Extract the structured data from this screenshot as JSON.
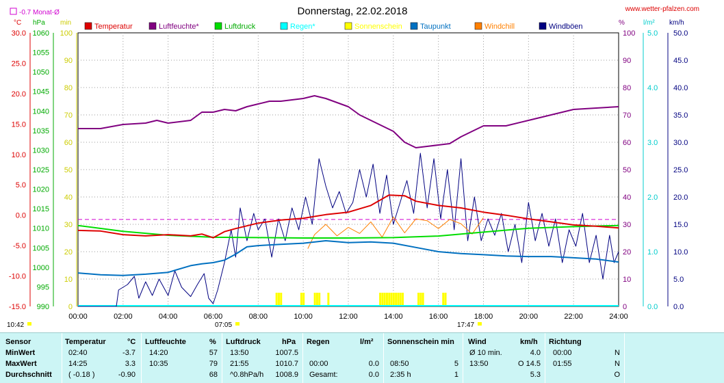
{
  "title": "Donnerstag, 22.02.2018",
  "site": "www.wetter-pfalzen.com",
  "avg_label": "-0.7 Monat-Ø",
  "unit_labels": {
    "c": "°C",
    "hpa": "hPa",
    "min": "min",
    "pct": "%",
    "lm2": "l/m²",
    "kmh": "km/h"
  },
  "legend": [
    {
      "label": "Temperatur",
      "color": "#dd0000"
    },
    {
      "label": "Luftfeuchte*",
      "color": "#800080"
    },
    {
      "label": "Luftdruck",
      "color": "#00dd00"
    },
    {
      "label": "Regen*",
      "color": "#00ffff"
    },
    {
      "label": "Sonnenschein",
      "color": "#ffff00"
    },
    {
      "label": "Taupunkt",
      "color": "#0070c0"
    },
    {
      "label": "Windchill",
      "color": "#ff8000"
    },
    {
      "label": "Windböen",
      "color": "#000080"
    }
  ],
  "axes": {
    "temp": [
      "30.0",
      "25.0",
      "20.0",
      "15.0",
      "10.0",
      "5.0",
      "0.0",
      "-5.0",
      "-10.0",
      "-15.0"
    ],
    "hpa": [
      "1060",
      "1055",
      "1050",
      "1045",
      "1040",
      "1035",
      "1030",
      "1025",
      "1020",
      "1015",
      "1010",
      "1005",
      "1000",
      "995",
      "990"
    ],
    "min": [
      "100",
      "90",
      "80",
      "70",
      "60",
      "50",
      "40",
      "30",
      "20",
      "10",
      "0"
    ],
    "pct": [
      "100",
      "90",
      "80",
      "70",
      "60",
      "50",
      "40",
      "30",
      "20",
      "10",
      "0"
    ],
    "lm2": [
      "5.0",
      "4.0",
      "3.0",
      "2.0",
      "1.0",
      "0.0"
    ],
    "kmh": [
      "50.0",
      "45.0",
      "40.0",
      "35.0",
      "30.0",
      "25.0",
      "20.0",
      "15.0",
      "10.0",
      "5.0",
      "0.0"
    ],
    "x": [
      "00:00",
      "02:00",
      "04:00",
      "06:00",
      "08:00",
      "10:00",
      "12:00",
      "14:00",
      "16:00",
      "18:00",
      "20:00",
      "22:00",
      "24:00"
    ]
  },
  "sun_times": {
    "rise": "07:05",
    "set": "17:47",
    "start": "10:42"
  },
  "chart_data": {
    "type": "line",
    "title": "Donnerstag, 22.02.2018",
    "x_unit": "hour",
    "xlim": [
      0,
      24
    ],
    "series": [
      {
        "name": "Temperatur",
        "axis": "°C",
        "ylim": [
          -15,
          30
        ],
        "points": [
          [
            0,
            -2.5
          ],
          [
            1,
            -2.6
          ],
          [
            2,
            -3.2
          ],
          [
            3,
            -3.4
          ],
          [
            4,
            -3.2
          ],
          [
            5,
            -3.4
          ],
          [
            5.5,
            -3.1
          ],
          [
            6,
            -3.7
          ],
          [
            6.5,
            -2.7
          ],
          [
            7,
            -2.2
          ],
          [
            8,
            -1.3
          ],
          [
            9,
            -0.8
          ],
          [
            10,
            -0.5
          ],
          [
            11,
            0.1
          ],
          [
            12,
            0.5
          ],
          [
            13,
            1.6
          ],
          [
            13.8,
            3.3
          ],
          [
            14.5,
            3.2
          ],
          [
            15,
            2.3
          ],
          [
            16,
            1.6
          ],
          [
            17,
            1.2
          ],
          [
            18,
            0.5
          ],
          [
            19,
            0
          ],
          [
            20,
            -0.6
          ],
          [
            21,
            -1.1
          ],
          [
            22,
            -1.6
          ],
          [
            23,
            -1.8
          ],
          [
            24,
            -2.1
          ]
        ]
      },
      {
        "name": "Luftfeuchte*",
        "axis": "%",
        "ylim": [
          0,
          100
        ],
        "points": [
          [
            0,
            65
          ],
          [
            1,
            65
          ],
          [
            2,
            66.5
          ],
          [
            3,
            67
          ],
          [
            3.5,
            68
          ],
          [
            4,
            67
          ],
          [
            5,
            68
          ],
          [
            5.5,
            71
          ],
          [
            6,
            71
          ],
          [
            6.5,
            72
          ],
          [
            7,
            71.5
          ],
          [
            7.5,
            73
          ],
          [
            8,
            74
          ],
          [
            8.5,
            75
          ],
          [
            9,
            75
          ],
          [
            10,
            76
          ],
          [
            10.5,
            77
          ],
          [
            11,
            76
          ],
          [
            12,
            73
          ],
          [
            12.5,
            70
          ],
          [
            13,
            68
          ],
          [
            14,
            64
          ],
          [
            14.5,
            60
          ],
          [
            15,
            58
          ],
          [
            15.5,
            58.5
          ],
          [
            16,
            59
          ],
          [
            16.5,
            59.5
          ],
          [
            17,
            62
          ],
          [
            17.5,
            64
          ],
          [
            18,
            66
          ],
          [
            19,
            66
          ],
          [
            20,
            68
          ],
          [
            21,
            70
          ],
          [
            22,
            72
          ],
          [
            23,
            72.5
          ],
          [
            24,
            73
          ]
        ]
      },
      {
        "name": "Luftdruck",
        "axis": "hPa",
        "ylim": [
          990,
          1060
        ],
        "points": [
          [
            0,
            1010.7
          ],
          [
            2,
            1009.2
          ],
          [
            4,
            1008.2
          ],
          [
            6,
            1007.7
          ],
          [
            8,
            1007.6
          ],
          [
            10,
            1007.5
          ],
          [
            12,
            1007.5
          ],
          [
            14,
            1007.6
          ],
          [
            16,
            1008.0
          ],
          [
            18,
            1009.0
          ],
          [
            20,
            1010.0
          ],
          [
            22,
            1010.4
          ],
          [
            24,
            1010.7
          ]
        ]
      },
      {
        "name": "Taupunkt",
        "axis": "°C",
        "ylim": [
          -15,
          30
        ],
        "points": [
          [
            0,
            -9.5
          ],
          [
            1,
            -9.8
          ],
          [
            2,
            -9.9
          ],
          [
            3,
            -9.7
          ],
          [
            4,
            -9.4
          ],
          [
            5,
            -8.3
          ],
          [
            5.5,
            -8.0
          ],
          [
            6,
            -7.8
          ],
          [
            6.5,
            -7.4
          ],
          [
            7,
            -6.4
          ],
          [
            7.5,
            -5.2
          ],
          [
            8,
            -5.0
          ],
          [
            9,
            -4.8
          ],
          [
            10,
            -4.6
          ],
          [
            11,
            -4.2
          ],
          [
            12,
            -4.5
          ],
          [
            13,
            -4.4
          ],
          [
            14,
            -4.6
          ],
          [
            15,
            -5.3
          ],
          [
            16,
            -6.0
          ],
          [
            17,
            -6.3
          ],
          [
            18,
            -6.5
          ],
          [
            19,
            -6.7
          ],
          [
            20,
            -6.8
          ],
          [
            21,
            -6.8
          ],
          [
            22,
            -7.0
          ],
          [
            23,
            -7.2
          ],
          [
            24,
            -7.7
          ]
        ]
      },
      {
        "name": "Windchill",
        "axis": "°C",
        "ylim": [
          -15,
          30
        ],
        "points": [
          [
            10.2,
            -5.5
          ],
          [
            10.5,
            -3.2
          ],
          [
            11,
            -1.5
          ],
          [
            11.5,
            -3.4
          ],
          [
            12,
            -2.0
          ],
          [
            12.5,
            -3.0
          ],
          [
            13,
            -1.1
          ],
          [
            13.5,
            -3.6
          ],
          [
            14,
            -0.3
          ],
          [
            14.5,
            -2.9
          ],
          [
            15,
            -0.6
          ],
          [
            15.5,
            -0.9
          ],
          [
            16,
            -2.2
          ],
          [
            16.5,
            -0.7
          ],
          [
            17,
            -1.4
          ],
          [
            17.5,
            -3.1
          ],
          [
            18,
            -0.4
          ]
        ]
      },
      {
        "name": "Windböen",
        "axis": "km/h",
        "ylim": [
          0,
          50
        ],
        "points": [
          [
            0,
            0
          ],
          [
            1.7,
            0
          ],
          [
            1.8,
            3
          ],
          [
            2.2,
            4
          ],
          [
            2.5,
            5.5
          ],
          [
            2.7,
            1.5
          ],
          [
            3,
            4.5
          ],
          [
            3.3,
            2
          ],
          [
            3.6,
            5
          ],
          [
            4,
            2
          ],
          [
            4.3,
            6.5
          ],
          [
            4.6,
            3.5
          ],
          [
            5,
            1.8
          ],
          [
            5.3,
            4
          ],
          [
            5.6,
            6
          ],
          [
            5.8,
            1.5
          ],
          [
            6,
            0.5
          ],
          [
            6.2,
            3
          ],
          [
            6.5,
            8
          ],
          [
            6.8,
            14
          ],
          [
            7,
            9
          ],
          [
            7.2,
            18
          ],
          [
            7.5,
            12
          ],
          [
            7.8,
            17
          ],
          [
            8,
            14
          ],
          [
            8.3,
            16
          ],
          [
            8.6,
            9
          ],
          [
            8.9,
            16
          ],
          [
            9.2,
            12
          ],
          [
            9.5,
            18
          ],
          [
            9.8,
            14
          ],
          [
            10.1,
            20
          ],
          [
            10.4,
            15
          ],
          [
            10.7,
            27
          ],
          [
            11,
            22
          ],
          [
            11.3,
            18
          ],
          [
            11.6,
            21
          ],
          [
            11.9,
            17
          ],
          [
            12.2,
            19
          ],
          [
            12.5,
            25
          ],
          [
            12.8,
            20
          ],
          [
            13.1,
            26
          ],
          [
            13.4,
            17
          ],
          [
            13.7,
            24
          ],
          [
            14,
            15
          ],
          [
            14.3,
            19
          ],
          [
            14.6,
            23
          ],
          [
            14.9,
            17
          ],
          [
            15.2,
            28
          ],
          [
            15.5,
            18
          ],
          [
            15.8,
            27
          ],
          [
            16.1,
            16
          ],
          [
            16.4,
            25
          ],
          [
            16.7,
            14
          ],
          [
            17,
            27
          ],
          [
            17.3,
            12
          ],
          [
            17.6,
            20
          ],
          [
            17.9,
            12
          ],
          [
            18.2,
            16
          ],
          [
            18.5,
            13
          ],
          [
            18.8,
            17
          ],
          [
            19.1,
            10
          ],
          [
            19.4,
            15
          ],
          [
            19.7,
            8
          ],
          [
            20,
            19
          ],
          [
            20.3,
            12
          ],
          [
            20.6,
            17
          ],
          [
            20.9,
            11
          ],
          [
            21.2,
            16
          ],
          [
            21.5,
            8
          ],
          [
            21.8,
            14
          ],
          [
            22.1,
            11
          ],
          [
            22.4,
            17
          ],
          [
            22.7,
            8
          ],
          [
            23,
            13
          ],
          [
            23.3,
            5
          ],
          [
            23.6,
            13
          ],
          [
            23.8,
            8
          ],
          [
            24,
            10
          ]
        ]
      }
    ],
    "sunshine_hours": [
      8.8,
      8.9,
      9.0,
      9.9,
      10.0,
      10.5,
      10.6,
      10.7,
      11.1,
      13.4,
      13.5,
      13.6,
      13.7,
      13.8,
      13.9,
      14.0,
      14.1,
      14.2,
      14.3,
      14.4,
      15.1,
      15.2,
      15.3,
      16.2,
      16.3
    ],
    "reference_line": {
      "label": "-0.7 Monat-Ø",
      "axis": "°C",
      "value": -0.7
    }
  },
  "table": {
    "headers": {
      "sensor": "Sensor",
      "temp": "Temperatur",
      "temp_unit": "°C",
      "hum": "Luftfeuchte",
      "hum_unit": "%",
      "press": "Luftdruck",
      "press_unit": "hPa",
      "rain": "Regen",
      "rain_unit": "l/m²",
      "sun": "Sonnenschein min",
      "wind": "Wind",
      "wind_unit": "km/h",
      "dir": "Richtung"
    },
    "rows": [
      {
        "label": "MinWert",
        "temp_t": "02:40",
        "temp_v": "-3.7",
        "hum_t": "14:20",
        "hum_v": "57",
        "press_t": "13:50",
        "press_v": "1007.5",
        "rain_t": "",
        "rain_v": "",
        "sun_t": "",
        "sun_v": "",
        "wind_t": "Ø 10 min.",
        "wind_v": "4.0",
        "dir_t": "00:00",
        "dir_v": "N"
      },
      {
        "label": "MaxWert",
        "temp_t": "14:25",
        "temp_v": "3.3",
        "hum_t": "10:35",
        "hum_v": "79",
        "press_t": "21:55",
        "press_v": "1010.7",
        "rain_t": "00:00",
        "rain_v": "0.0",
        "sun_t": "08:50",
        "sun_v": "5",
        "wind_t": "13:50",
        "wind_v": "O 14.5",
        "dir_t": "01:55",
        "dir_v": "N"
      },
      {
        "label": "Durchschnitt",
        "temp_t": "( -0.18 )",
        "temp_v": "-0.90",
        "hum_t": "",
        "hum_v": "68",
        "press_t": "^0.8hPa/h",
        "press_v": "1008.9",
        "rain_t": "Gesamt:",
        "rain_v": "0.0",
        "sun_t": "2:35 h",
        "sun_v": "1",
        "wind_t": "",
        "wind_v": "5.3",
        "dir_t": "",
        "dir_v": "O"
      }
    ]
  }
}
